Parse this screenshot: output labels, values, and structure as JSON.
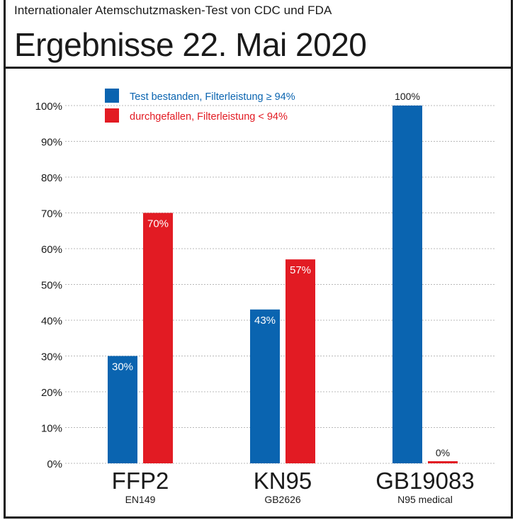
{
  "header": {
    "kicker": "Internationaler Atemschutzmasken-Test von CDC und FDA",
    "title": "Ergebnisse 22. Mai 2020"
  },
  "colors": {
    "pass": "#0a64b0",
    "fail": "#e21b23",
    "grid": "#b8b8b8"
  },
  "chart_data": {
    "type": "bar",
    "categories": [
      "FFP2",
      "KN95",
      "GB19083"
    ],
    "category_sublabels": [
      "EN149",
      "GB2626",
      "N95 medical"
    ],
    "series": [
      {
        "name": "Test bestanden, Filterleistung ≥ 94%",
        "color": "#0a64b0",
        "values": [
          30,
          43,
          100
        ],
        "labels": [
          "30%",
          "43%",
          "100%"
        ]
      },
      {
        "name": "durchgefallen, Filterleistung < 94%",
        "color": "#e21b23",
        "values": [
          70,
          57,
          0
        ],
        "labels": [
          "70%",
          "57%",
          "0%"
        ]
      }
    ],
    "yticks": [
      0,
      10,
      20,
      30,
      40,
      50,
      60,
      70,
      80,
      90,
      100
    ],
    "ytick_labels": [
      "0%",
      "10%",
      "20%",
      "30%",
      "40%",
      "50%",
      "60%",
      "70%",
      "80%",
      "90%",
      "100%"
    ],
    "ylim": [
      0,
      100
    ],
    "grid": true,
    "legend_position": "top-left"
  }
}
